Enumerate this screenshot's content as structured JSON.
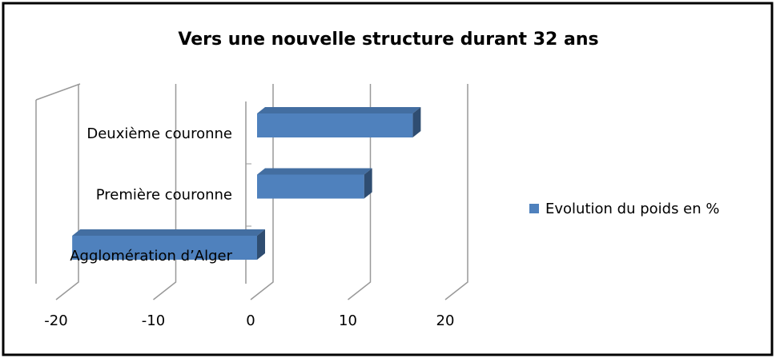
{
  "chart_data": {
    "type": "bar",
    "orientation": "horizontal",
    "title": "Vers une nouvelle structure durant 32 ans",
    "categories": [
      "Agglomération d’Alger",
      "Première couronne",
      "Deuxième couronne"
    ],
    "series": [
      {
        "name": "Evolution du poids en %",
        "color": "#4f81bd",
        "values": [
          -19,
          11,
          16
        ]
      }
    ],
    "xlim": [
      -20,
      20
    ],
    "xticks": [
      -20,
      -10,
      0,
      10,
      20
    ],
    "grid": true,
    "legend": "right"
  }
}
